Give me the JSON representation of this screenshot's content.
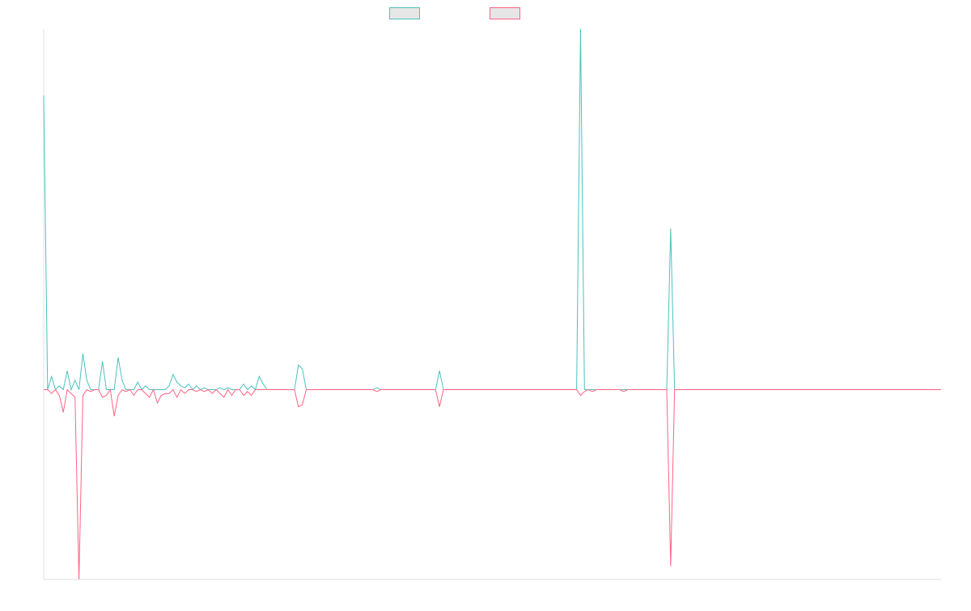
{
  "chart_data": {
    "type": "line",
    "title": "",
    "xlabel": "",
    "ylabel": "",
    "grid": false,
    "legend_position": "top-center",
    "xlim": [
      0,
      229
    ],
    "ylim": [
      -100,
      190
    ],
    "baseline": 0,
    "series": [
      {
        "color": "#4bc0c0",
        "fill": "#e6e6e6",
        "points": [
          [
            0,
            155
          ],
          [
            1,
            0
          ],
          [
            2,
            7
          ],
          [
            3,
            0
          ],
          [
            4,
            2
          ],
          [
            5,
            0
          ],
          [
            6,
            10
          ],
          [
            7,
            0
          ],
          [
            8,
            5
          ],
          [
            9,
            0
          ],
          [
            10,
            19
          ],
          [
            11,
            5
          ],
          [
            12,
            0
          ],
          [
            13,
            0
          ],
          [
            14,
            0
          ],
          [
            15,
            15
          ],
          [
            16,
            0
          ],
          [
            17,
            0
          ],
          [
            18,
            0
          ],
          [
            19,
            17
          ],
          [
            20,
            5
          ],
          [
            21,
            0
          ],
          [
            22,
            0
          ],
          [
            23,
            0
          ],
          [
            24,
            4
          ],
          [
            25,
            0
          ],
          [
            26,
            2
          ],
          [
            27,
            0
          ],
          [
            28,
            0
          ],
          [
            29,
            0
          ],
          [
            30,
            0
          ],
          [
            31,
            0
          ],
          [
            32,
            2
          ],
          [
            33,
            8
          ],
          [
            34,
            4
          ],
          [
            35,
            2
          ],
          [
            36,
            1
          ],
          [
            37,
            3
          ],
          [
            38,
            0
          ],
          [
            39,
            2
          ],
          [
            40,
            0
          ],
          [
            41,
            1
          ],
          [
            42,
            0
          ],
          [
            43,
            0
          ],
          [
            44,
            0
          ],
          [
            45,
            1
          ],
          [
            46,
            0
          ],
          [
            47,
            1
          ],
          [
            48,
            0
          ],
          [
            49,
            0
          ],
          [
            50,
            0
          ],
          [
            51,
            3
          ],
          [
            52,
            0
          ],
          [
            53,
            2
          ],
          [
            54,
            0
          ],
          [
            55,
            7
          ],
          [
            56,
            3
          ],
          [
            57,
            0
          ],
          [
            64,
            0
          ],
          [
            65,
            13
          ],
          [
            66,
            11
          ],
          [
            67,
            0
          ],
          [
            68,
            0
          ],
          [
            84,
            0
          ],
          [
            85,
            1
          ],
          [
            86,
            0
          ],
          [
            87,
            0
          ],
          [
            88,
            0
          ],
          [
            100,
            0
          ],
          [
            101,
            10
          ],
          [
            102,
            0
          ],
          [
            136,
            0
          ],
          [
            137,
            190
          ],
          [
            138,
            0
          ],
          [
            139,
            0
          ],
          [
            140,
            0
          ],
          [
            141,
            0
          ],
          [
            147,
            0
          ],
          [
            148,
            0
          ],
          [
            149,
            0
          ],
          [
            159,
            0
          ],
          [
            160,
            85
          ],
          [
            161,
            0
          ],
          [
            229,
            0
          ]
        ]
      },
      {
        "color": "#ff6384",
        "fill": "#e6e6e6",
        "points": [
          [
            0,
            0
          ],
          [
            1,
            0
          ],
          [
            2,
            -2
          ],
          [
            3,
            0
          ],
          [
            4,
            -3
          ],
          [
            5,
            -12
          ],
          [
            6,
            0
          ],
          [
            7,
            -2
          ],
          [
            8,
            -4
          ],
          [
            9,
            -100
          ],
          [
            10,
            -3
          ],
          [
            11,
            0
          ],
          [
            12,
            -1
          ],
          [
            13,
            0
          ],
          [
            14,
            0
          ],
          [
            15,
            -4
          ],
          [
            16,
            -3
          ],
          [
            17,
            0
          ],
          [
            18,
            -14
          ],
          [
            19,
            -3
          ],
          [
            20,
            0
          ],
          [
            21,
            -1
          ],
          [
            22,
            0
          ],
          [
            23,
            -3
          ],
          [
            24,
            0
          ],
          [
            25,
            0
          ],
          [
            26,
            -2
          ],
          [
            27,
            -4
          ],
          [
            28,
            0
          ],
          [
            29,
            -7
          ],
          [
            30,
            -3
          ],
          [
            31,
            -2
          ],
          [
            32,
            -2
          ],
          [
            33,
            0
          ],
          [
            34,
            -4
          ],
          [
            35,
            0
          ],
          [
            36,
            -2
          ],
          [
            37,
            0
          ],
          [
            38,
            0
          ],
          [
            39,
            -1
          ],
          [
            40,
            0
          ],
          [
            41,
            -1
          ],
          [
            42,
            0
          ],
          [
            43,
            -2
          ],
          [
            44,
            0
          ],
          [
            45,
            -2
          ],
          [
            46,
            -4
          ],
          [
            47,
            0
          ],
          [
            48,
            -3
          ],
          [
            49,
            0
          ],
          [
            50,
            0
          ],
          [
            51,
            -3
          ],
          [
            52,
            -1
          ],
          [
            53,
            -3
          ],
          [
            54,
            0
          ],
          [
            55,
            0
          ],
          [
            56,
            0
          ],
          [
            64,
            0
          ],
          [
            65,
            -9
          ],
          [
            66,
            -8
          ],
          [
            67,
            0
          ],
          [
            84,
            0
          ],
          [
            85,
            -1
          ],
          [
            86,
            0
          ],
          [
            100,
            0
          ],
          [
            101,
            -9
          ],
          [
            102,
            0
          ],
          [
            136,
            0
          ],
          [
            137,
            -3
          ],
          [
            138,
            -1
          ],
          [
            139,
            0
          ],
          [
            140,
            -1
          ],
          [
            141,
            0
          ],
          [
            147,
            0
          ],
          [
            148,
            -1
          ],
          [
            149,
            0
          ],
          [
            159,
            0
          ],
          [
            160,
            -93
          ],
          [
            161,
            0
          ],
          [
            229,
            0
          ]
        ]
      }
    ]
  }
}
